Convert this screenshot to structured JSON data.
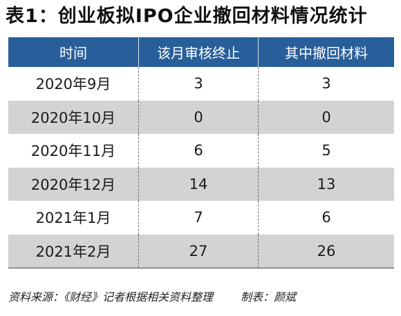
{
  "title": "表1：创业板拟IPO企业撤回材料情况统计",
  "table": {
    "headers": [
      "时间",
      "该月审核终止",
      "其中撤回材料"
    ],
    "rows": [
      {
        "time": "2020年9月",
        "terminated": "3",
        "withdrawn": "3"
      },
      {
        "time": "2020年10月",
        "terminated": "0",
        "withdrawn": "0"
      },
      {
        "time": "2020年11月",
        "terminated": "6",
        "withdrawn": "5"
      },
      {
        "time": "2020年12月",
        "terminated": "14",
        "withdrawn": "13"
      },
      {
        "time": "2021年1月",
        "terminated": "7",
        "withdrawn": "6"
      },
      {
        "time": "2021年2月",
        "terminated": "27",
        "withdrawn": "26"
      }
    ]
  },
  "footer": {
    "source": "资料来源：《财经》记者根据相关资料整理",
    "author": "制表：颜斌"
  },
  "colors": {
    "header_bg": "#285f9a",
    "alt_row_bg": "#d1d3d4",
    "header_text": "#ffffff"
  }
}
